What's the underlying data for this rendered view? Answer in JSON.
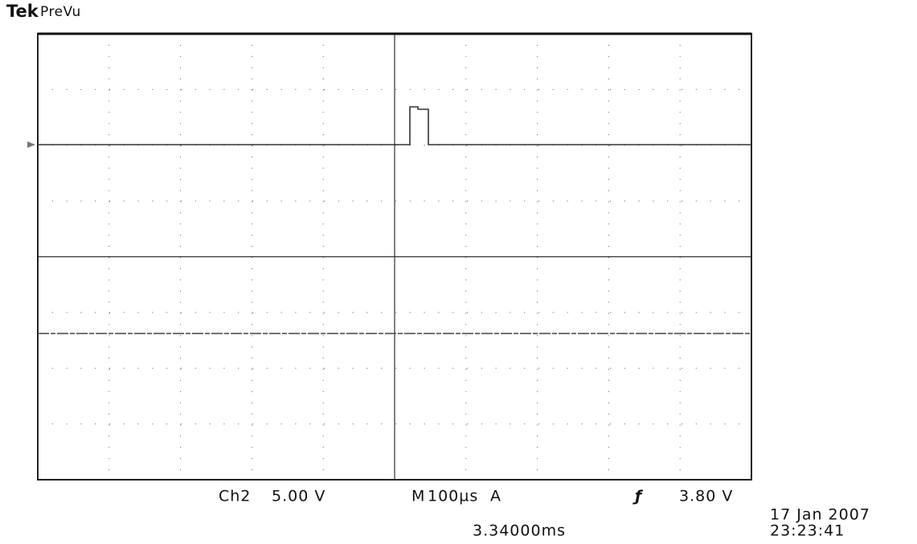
{
  "header": {
    "brand": "Tek",
    "mode": "PreVu"
  },
  "status": {
    "channel": "Ch2",
    "volts_per_div": "5.00 V",
    "time_label": "M",
    "time_per_div": "100µs",
    "trigger_label": "A",
    "trigger_slope": "ƒ",
    "trigger_level": "3.80 V",
    "position": "3.34000ms"
  },
  "timestamp": {
    "date": "17 Jan  2007",
    "time": "23:23:41"
  }
}
